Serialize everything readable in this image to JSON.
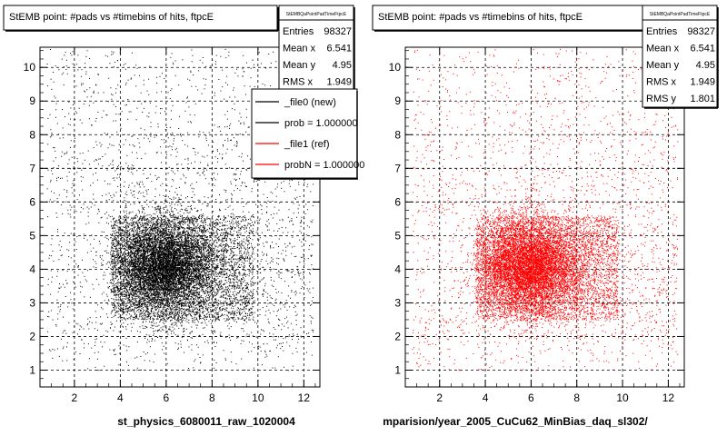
{
  "footer_text": "",
  "chart_data": [
    {
      "type": "scatter",
      "title": "StEMB point: #pads vs #timebins of hits, ftpcE",
      "xlabel": "st_physics_6080011_raw_1020004",
      "ylabel": "",
      "xlim": [
        0.5,
        12.7
      ],
      "ylim": [
        0.5,
        10.6
      ],
      "xticks": [
        "2",
        "4",
        "6",
        "8",
        "10",
        "12"
      ],
      "yticks": [
        "1",
        "2",
        "3",
        "4",
        "5",
        "6",
        "7",
        "8",
        "9",
        "10"
      ],
      "grid": true,
      "marker_color": "#000000",
      "stats": {
        "name": "StEMBQaPointPadTimeFtpcE",
        "rows": [
          {
            "label": "Entries",
            "value": "98327"
          },
          {
            "label": "Mean x",
            "value": "6.541"
          },
          {
            "label": "Mean y",
            "value": "4.95"
          },
          {
            "label": "RMS x",
            "value": "1.949"
          }
        ]
      },
      "legend": {
        "placement": "top-right",
        "entries": [
          {
            "label": "_file0 (new)",
            "color": "#000000"
          },
          {
            "label": "prob = 1.000000",
            "color": "#000000"
          },
          {
            "label": "_file1 (ref)",
            "color": "#ff0000"
          },
          {
            "label": "probN = 1.000000",
            "color": "#ff0000"
          }
        ]
      },
      "distribution": {
        "entries": 98327,
        "mean_x": 6.541,
        "mean_y": 4.95,
        "rms_x": 1.949,
        "rms_y": 1.801
      }
    },
    {
      "type": "scatter",
      "title": "StEMB point: #pads vs #timebins of hits, ftpcE",
      "xlabel": "mparision/year_2005_CuCu62_MinBias_daq_sl302/",
      "ylabel": "",
      "xlim": [
        0.5,
        12.7
      ],
      "ylim": [
        0.5,
        10.6
      ],
      "xticks": [
        "2",
        "4",
        "6",
        "8",
        "10",
        "12"
      ],
      "yticks": [
        "1",
        "2",
        "3",
        "4",
        "5",
        "6",
        "7",
        "8",
        "9",
        "10"
      ],
      "grid": true,
      "marker_color": "#ff0000",
      "stats": {
        "name": "StEMBQaPointPadTimeFtpcE",
        "rows": [
          {
            "label": "Entries",
            "value": "98327"
          },
          {
            "label": "Mean x",
            "value": "6.541"
          },
          {
            "label": "Mean y",
            "value": "4.95"
          },
          {
            "label": "RMS x",
            "value": "1.949"
          },
          {
            "label": "RMS y",
            "value": "1.801"
          }
        ]
      },
      "distribution": {
        "entries": 98327,
        "mean_x": 6.541,
        "mean_y": 4.95,
        "rms_x": 1.949,
        "rms_y": 1.801
      }
    }
  ]
}
